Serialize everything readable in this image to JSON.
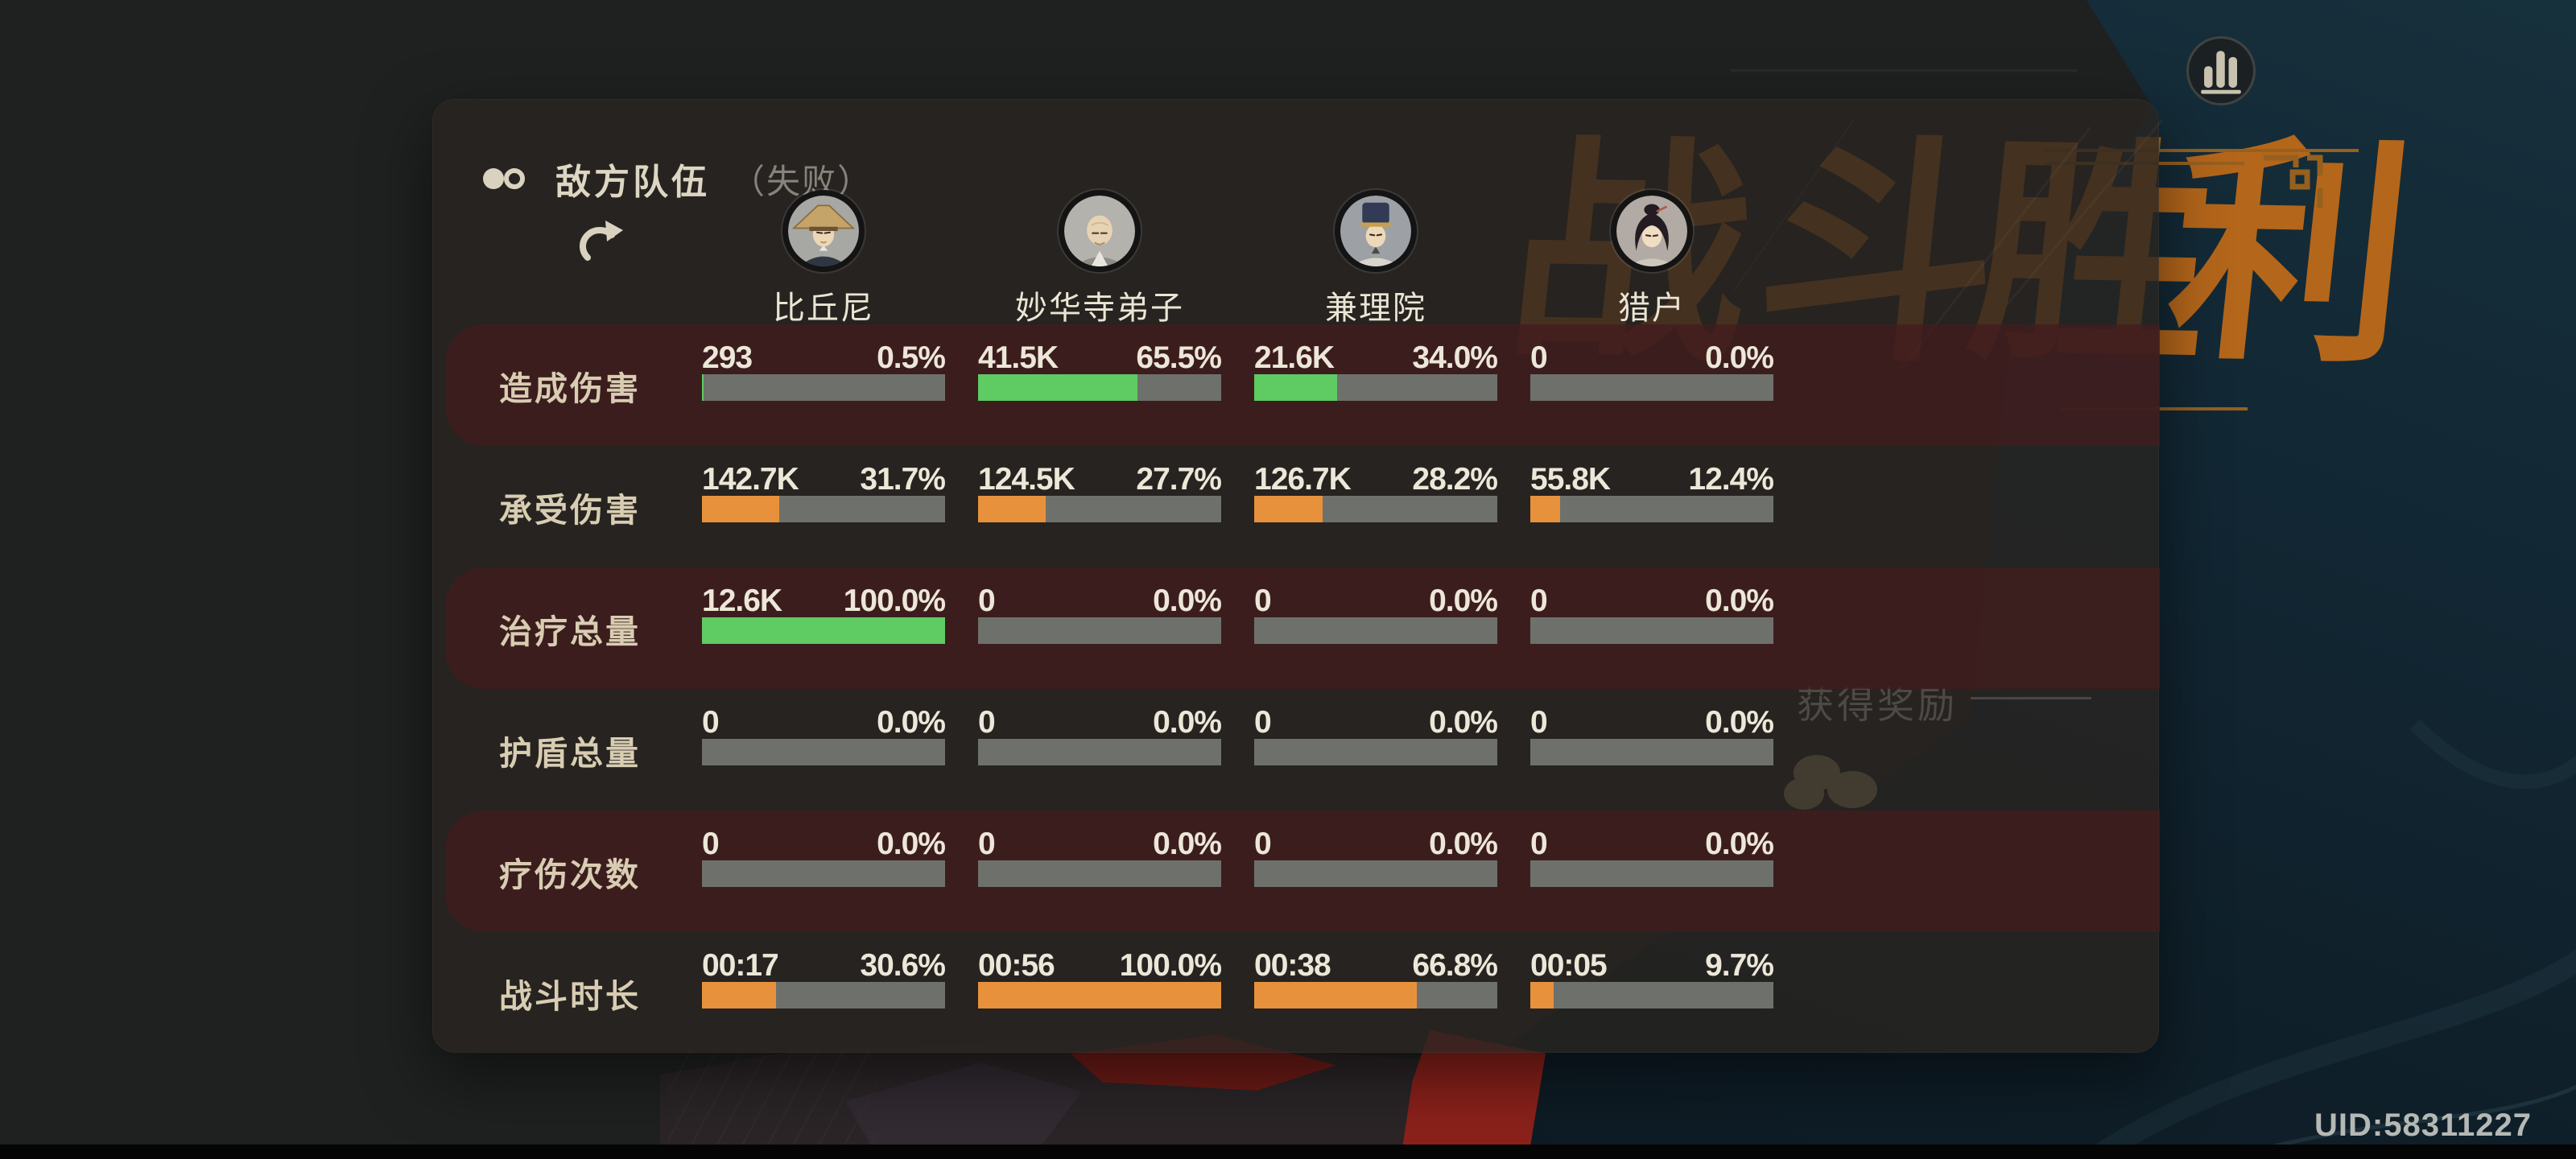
{
  "colors": {
    "green": "#5ecb63",
    "orange": "#e8913c",
    "track": "#6e716b",
    "cream": "#ddd6c2",
    "muted": "#85837b",
    "value": "#ece7d8",
    "label": "#d8cdb2",
    "titleOrange": "#b4661a",
    "uid": "#b5b9b5"
  },
  "header": {
    "team_label": "敌方队伍",
    "result_label": "（失败）"
  },
  "characters": [
    {
      "name": "比丘尼"
    },
    {
      "name": "妙华寺弟子"
    },
    {
      "name": "兼理院"
    },
    {
      "name": "猎户"
    }
  ],
  "rows": [
    {
      "label": "造成伤害",
      "bar": "green",
      "highlight": true,
      "cells": [
        {
          "value": "293",
          "pct": "0.5%",
          "fill": 0.5
        },
        {
          "value": "41.5K",
          "pct": "65.5%",
          "fill": 65.5
        },
        {
          "value": "21.6K",
          "pct": "34.0%",
          "fill": 34.0
        },
        {
          "value": "0",
          "pct": "0.0%",
          "fill": 0
        }
      ]
    },
    {
      "label": "承受伤害",
      "bar": "orange",
      "highlight": false,
      "cells": [
        {
          "value": "142.7K",
          "pct": "31.7%",
          "fill": 31.7
        },
        {
          "value": "124.5K",
          "pct": "27.7%",
          "fill": 27.7
        },
        {
          "value": "126.7K",
          "pct": "28.2%",
          "fill": 28.2
        },
        {
          "value": "55.8K",
          "pct": "12.4%",
          "fill": 12.4
        }
      ]
    },
    {
      "label": "治疗总量",
      "bar": "green",
      "highlight": true,
      "cells": [
        {
          "value": "12.6K",
          "pct": "100.0%",
          "fill": 100
        },
        {
          "value": "0",
          "pct": "0.0%",
          "fill": 0
        },
        {
          "value": "0",
          "pct": "0.0%",
          "fill": 0
        },
        {
          "value": "0",
          "pct": "0.0%",
          "fill": 0
        }
      ]
    },
    {
      "label": "护盾总量",
      "bar": "green",
      "highlight": false,
      "cells": [
        {
          "value": "0",
          "pct": "0.0%",
          "fill": 0
        },
        {
          "value": "0",
          "pct": "0.0%",
          "fill": 0
        },
        {
          "value": "0",
          "pct": "0.0%",
          "fill": 0
        },
        {
          "value": "0",
          "pct": "0.0%",
          "fill": 0
        }
      ]
    },
    {
      "label": "疗伤次数",
      "bar": "green",
      "highlight": true,
      "cells": [
        {
          "value": "0",
          "pct": "0.0%",
          "fill": 0
        },
        {
          "value": "0",
          "pct": "0.0%",
          "fill": 0
        },
        {
          "value": "0",
          "pct": "0.0%",
          "fill": 0
        },
        {
          "value": "0",
          "pct": "0.0%",
          "fill": 0
        }
      ]
    },
    {
      "label": "战斗时长",
      "bar": "orange",
      "highlight": false,
      "cells": [
        {
          "value": "00:17",
          "pct": "30.6%",
          "fill": 30.6
        },
        {
          "value": "00:56",
          "pct": "100.0%",
          "fill": 100
        },
        {
          "value": "00:38",
          "pct": "66.8%",
          "fill": 66.8
        },
        {
          "value": "00:05",
          "pct": "9.7%",
          "fill": 9.7
        }
      ]
    }
  ],
  "victory": {
    "title": "战斗胜利",
    "chars": [
      "战",
      "斗",
      "胜",
      "利"
    ],
    "rewards_label": "获得奖励"
  },
  "footer": {
    "uid": "UID:58311227"
  },
  "icons": {
    "team_toggle": "two-circles-toggle",
    "refresh": "circular-arrows",
    "stats": "bar-chart"
  }
}
